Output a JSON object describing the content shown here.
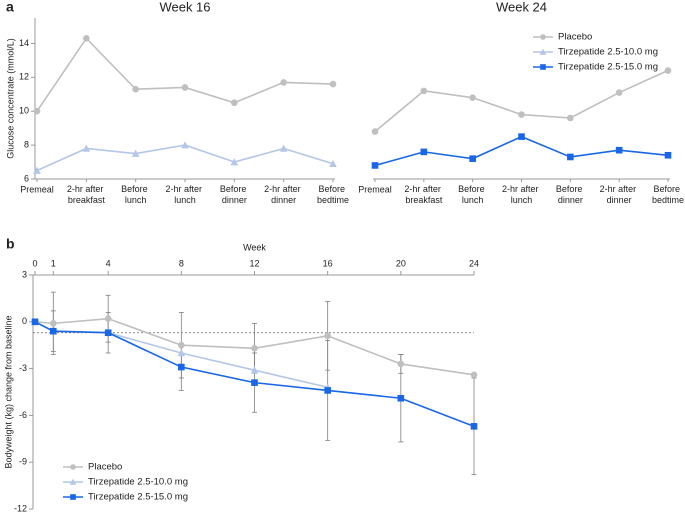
{
  "chart_data": [
    {
      "type": "line",
      "title": "Week 16",
      "panel_label": "a",
      "y_label": "Glucose concentrate (mmol/L)",
      "categories": [
        "Premeal",
        "2-hr after breakfast",
        "Before lunch",
        "2-hr after lunch",
        "Before dinner",
        "2-hr after dinner",
        "Before bedtime"
      ],
      "series": [
        {
          "name": "Placebo",
          "color": "#bfbfbf",
          "marker": "circle",
          "values": [
            10.0,
            14.3,
            11.3,
            11.4,
            10.5,
            11.7,
            11.6
          ]
        },
        {
          "name": "Tirzepatide 2.5-10.0 mg",
          "color": "#b4c7e7",
          "marker": "triangle",
          "values": [
            6.5,
            7.8,
            7.5,
            8.0,
            7.0,
            7.8,
            6.9
          ]
        }
      ],
      "ylim": [
        6,
        15.5
      ],
      "yticks": [
        6,
        8,
        10,
        12,
        14
      ]
    },
    {
      "type": "line",
      "title": "Week 24",
      "categories": [
        "Premeal",
        "2-hr after breakfast",
        "Before lunch",
        "2-hr after lunch",
        "Before dinner",
        "2-hr after dinner",
        "Before bedtime"
      ],
      "series": [
        {
          "name": "Placebo",
          "color": "#bfbfbf",
          "marker": "circle",
          "values": [
            8.8,
            11.2,
            10.8,
            9.8,
            9.6,
            11.1,
            12.4
          ]
        },
        {
          "name": "Tirzepatide 2.5-10.0 mg",
          "color": "#b4c7e7",
          "marker": "triangle",
          "values": [
            null,
            null,
            null,
            null,
            null,
            null,
            null
          ]
        },
        {
          "name": "Tirzepatide 2.5-15.0 mg",
          "color": "#1a66e8",
          "marker": "square",
          "values": [
            6.8,
            7.6,
            7.2,
            8.5,
            7.3,
            7.7,
            7.4
          ]
        }
      ],
      "ylim": [
        6,
        15.5
      ],
      "legend": "upper right"
    },
    {
      "type": "line",
      "panel_label": "b",
      "x_label": "Week",
      "y_label": "Bodyweight (kg) change from baseline",
      "x": [
        0,
        1,
        4,
        8,
        12,
        16,
        20,
        24
      ],
      "xlim": [
        0,
        24
      ],
      "xticks": [
        0,
        1,
        4,
        8,
        12,
        16,
        20,
        24
      ],
      "ylim": [
        -12,
        3
      ],
      "yticks": [
        3,
        0,
        -3,
        -6,
        -9,
        -12
      ],
      "reference_line": -0.7,
      "legend": "lower left",
      "series": [
        {
          "name": "Placebo",
          "color": "#bfbfbf",
          "marker": "circle",
          "values": [
            0,
            -0.1,
            0.2,
            -1.5,
            -1.7,
            -0.9,
            -2.7,
            -3.4
          ],
          "errors": [
            null,
            2.0,
            1.5,
            2.1,
            1.6,
            2.2,
            0.6,
            null
          ]
        },
        {
          "name": "Tirzepatide 2.5-10.0 mg",
          "color": "#b4c7e7",
          "marker": "triangle",
          "values": [
            0,
            -0.6,
            -0.7,
            -2.0,
            -3.1,
            -4.2,
            null,
            null
          ]
        },
        {
          "name": "Tirzepatide 2.5-15.0 mg",
          "color": "#1a66e8",
          "marker": "square",
          "values": [
            0,
            -0.6,
            -0.7,
            -2.9,
            -3.9,
            -4.4,
            -4.9,
            -6.7
          ],
          "errors": [
            null,
            1.3,
            1.3,
            1.5,
            1.9,
            3.2,
            2.8,
            3.1
          ]
        }
      ]
    }
  ]
}
